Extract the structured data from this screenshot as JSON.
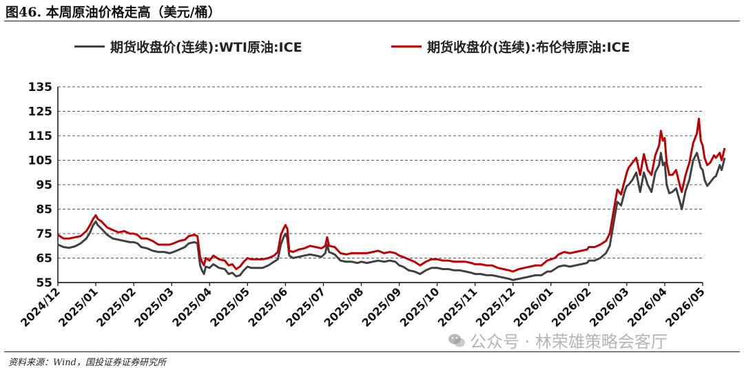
{
  "header": {
    "title": "图46. 本周原油价格走高（美元/桶）"
  },
  "footer": {
    "source": "资料来源：Wind，国投证券证券研究所"
  },
  "watermark": {
    "text": "公众号 · 林荣雄策略会客厅",
    "icon": "wechat-icon"
  },
  "chart_data": {
    "type": "line",
    "title": "本周原油价格走高（美元/桶）",
    "xlabel": "",
    "ylabel": "",
    "ylim": [
      55,
      135
    ],
    "yticks": [
      55,
      65,
      75,
      85,
      95,
      105,
      115,
      125,
      135
    ],
    "grid": "horizontal-dashed",
    "legend_placement": "top",
    "categories": [
      "2024/12",
      "2025/01",
      "2025/02",
      "2025/03",
      "2025/04",
      "2025/05",
      "2025/06",
      "2025/07",
      "2025/08",
      "2025/09",
      "2025/10",
      "2025/11",
      "2025/12",
      "2026/01",
      "2026/02",
      "2026/03",
      "2026/04",
      "2026/05"
    ],
    "series": [
      {
        "name": "期货收盘价(连续):WTI原油:ICE",
        "color": "#404040",
        "points": [
          [
            0,
            70.5
          ],
          [
            0.15,
            69.5
          ],
          [
            0.3,
            69.2
          ],
          [
            0.45,
            69.8
          ],
          [
            0.6,
            71
          ],
          [
            0.75,
            73
          ],
          [
            0.85,
            75.5
          ],
          [
            0.93,
            78.5
          ],
          [
            1.0,
            80
          ],
          [
            1.05,
            78.5
          ],
          [
            1.15,
            77
          ],
          [
            1.3,
            74.5
          ],
          [
            1.45,
            73
          ],
          [
            1.6,
            72.5
          ],
          [
            1.75,
            72
          ],
          [
            1.9,
            71.5
          ],
          [
            2.0,
            71.5
          ],
          [
            2.1,
            71
          ],
          [
            2.2,
            69.5
          ],
          [
            2.35,
            69
          ],
          [
            2.5,
            68
          ],
          [
            2.65,
            67.5
          ],
          [
            2.8,
            67.5
          ],
          [
            2.95,
            67
          ],
          [
            3.05,
            67.5
          ],
          [
            3.2,
            68.5
          ],
          [
            3.35,
            69.5
          ],
          [
            3.45,
            71
          ],
          [
            3.6,
            71.5
          ],
          [
            3.68,
            71
          ],
          [
            3.75,
            62
          ],
          [
            3.8,
            60
          ],
          [
            3.85,
            58.5
          ],
          [
            3.9,
            61.5
          ],
          [
            4.0,
            61
          ],
          [
            4.1,
            62.5
          ],
          [
            4.25,
            61
          ],
          [
            4.4,
            60.5
          ],
          [
            4.5,
            58.5
          ],
          [
            4.6,
            59
          ],
          [
            4.7,
            57.5
          ],
          [
            4.8,
            58
          ],
          [
            4.9,
            60
          ],
          [
            5.0,
            61.5
          ],
          [
            5.1,
            61
          ],
          [
            5.25,
            61
          ],
          [
            5.4,
            61
          ],
          [
            5.55,
            62
          ],
          [
            5.7,
            63.5
          ],
          [
            5.8,
            64.5
          ],
          [
            5.88,
            70.5
          ],
          [
            5.95,
            73.5
          ],
          [
            6.0,
            75
          ],
          [
            6.05,
            73
          ],
          [
            6.1,
            66
          ],
          [
            6.2,
            65
          ],
          [
            6.35,
            65.5
          ],
          [
            6.5,
            66
          ],
          [
            6.65,
            66.5
          ],
          [
            6.8,
            66
          ],
          [
            6.95,
            65.5
          ],
          [
            7.05,
            67
          ],
          [
            7.1,
            70.5
          ],
          [
            7.15,
            67.5
          ],
          [
            7.3,
            66.5
          ],
          [
            7.45,
            64
          ],
          [
            7.6,
            63.5
          ],
          [
            7.75,
            63.5
          ],
          [
            7.9,
            63
          ],
          [
            8.0,
            63.5
          ],
          [
            8.15,
            63
          ],
          [
            8.3,
            63.5
          ],
          [
            8.45,
            64
          ],
          [
            8.6,
            63.5
          ],
          [
            8.75,
            64
          ],
          [
            8.9,
            63.5
          ],
          [
            9.0,
            62
          ],
          [
            9.1,
            61.5
          ],
          [
            9.25,
            60
          ],
          [
            9.4,
            59.5
          ],
          [
            9.55,
            58.5
          ],
          [
            9.7,
            60
          ],
          [
            9.85,
            61
          ],
          [
            10.0,
            61
          ],
          [
            10.15,
            60.5
          ],
          [
            10.3,
            60.5
          ],
          [
            10.45,
            60
          ],
          [
            10.6,
            60
          ],
          [
            10.75,
            59.5
          ],
          [
            10.9,
            59
          ],
          [
            11.0,
            58.5
          ],
          [
            11.15,
            58.5
          ],
          [
            11.3,
            58
          ],
          [
            11.45,
            58
          ],
          [
            11.6,
            57.5
          ],
          [
            11.75,
            57
          ],
          [
            11.9,
            56.5
          ],
          [
            12.0,
            56
          ],
          [
            12.15,
            56.5
          ],
          [
            12.3,
            57
          ],
          [
            12.45,
            57.5
          ],
          [
            12.6,
            58
          ],
          [
            12.75,
            58
          ],
          [
            12.9,
            59.5
          ],
          [
            13.0,
            59.5
          ],
          [
            13.1,
            60.5
          ],
          [
            13.2,
            61.5
          ],
          [
            13.35,
            62
          ],
          [
            13.5,
            61.5
          ],
          [
            13.65,
            62
          ],
          [
            13.8,
            62.5
          ],
          [
            13.95,
            63
          ],
          [
            14.0,
            64
          ],
          [
            14.15,
            64
          ],
          [
            14.3,
            65
          ],
          [
            14.45,
            67
          ],
          [
            14.55,
            70
          ],
          [
            14.65,
            79
          ],
          [
            14.75,
            88
          ],
          [
            14.85,
            86.5
          ],
          [
            14.95,
            92.5
          ],
          [
            15.0,
            94.5
          ],
          [
            15.05,
            95
          ],
          [
            15.15,
            97
          ],
          [
            15.25,
            100
          ],
          [
            15.35,
            92
          ],
          [
            15.45,
            100
          ],
          [
            15.55,
            95
          ],
          [
            15.65,
            92
          ],
          [
            15.75,
            100
          ],
          [
            15.85,
            103
          ],
          [
            15.9,
            108
          ],
          [
            15.95,
            103
          ],
          [
            16.0,
            104
          ],
          [
            16.05,
            95
          ],
          [
            16.12,
            91.5
          ],
          [
            16.2,
            92
          ],
          [
            16.3,
            93.5
          ],
          [
            16.4,
            88
          ],
          [
            16.45,
            85
          ],
          [
            16.55,
            92.5
          ],
          [
            16.65,
            97
          ],
          [
            16.75,
            105
          ],
          [
            16.85,
            108
          ],
          [
            16.95,
            102
          ],
          [
            17.0,
            101
          ],
          [
            17.05,
            97
          ],
          [
            17.12,
            94.5
          ],
          [
            17.2,
            96
          ],
          [
            17.3,
            98
          ],
          [
            17.35,
            98.5
          ],
          [
            17.45,
            103
          ],
          [
            17.5,
            101
          ],
          [
            17.55,
            104
          ],
          [
            17.58,
            106
          ]
        ]
      },
      {
        "name": "期货收盘价(连续):布伦特原油:ICE",
        "color": "#C00000",
        "points": [
          [
            0,
            74.5
          ],
          [
            0.15,
            73
          ],
          [
            0.3,
            73
          ],
          [
            0.45,
            73.5
          ],
          [
            0.6,
            74
          ],
          [
            0.75,
            76
          ],
          [
            0.85,
            78.5
          ],
          [
            0.93,
            81
          ],
          [
            1.0,
            82.5
          ],
          [
            1.05,
            81
          ],
          [
            1.15,
            80
          ],
          [
            1.3,
            77.5
          ],
          [
            1.45,
            76.5
          ],
          [
            1.6,
            75.5
          ],
          [
            1.75,
            76
          ],
          [
            1.9,
            75
          ],
          [
            2.0,
            75
          ],
          [
            2.1,
            74.5
          ],
          [
            2.2,
            73
          ],
          [
            2.35,
            73
          ],
          [
            2.5,
            72
          ],
          [
            2.65,
            70.5
          ],
          [
            2.8,
            70.5
          ],
          [
            2.95,
            70.5
          ],
          [
            3.05,
            71
          ],
          [
            3.2,
            72
          ],
          [
            3.35,
            72.5
          ],
          [
            3.45,
            74
          ],
          [
            3.6,
            74.5
          ],
          [
            3.68,
            74
          ],
          [
            3.75,
            65.5
          ],
          [
            3.8,
            63.5
          ],
          [
            3.85,
            62
          ],
          [
            3.9,
            65
          ],
          [
            4.0,
            64
          ],
          [
            4.1,
            66
          ],
          [
            4.25,
            64.5
          ],
          [
            4.4,
            64
          ],
          [
            4.5,
            62
          ],
          [
            4.6,
            62.5
          ],
          [
            4.7,
            60.5
          ],
          [
            4.8,
            61.5
          ],
          [
            4.9,
            63.5
          ],
          [
            5.0,
            65
          ],
          [
            5.1,
            64.5
          ],
          [
            5.25,
            64.5
          ],
          [
            5.4,
            64.5
          ],
          [
            5.55,
            65
          ],
          [
            5.7,
            66
          ],
          [
            5.8,
            67.5
          ],
          [
            5.88,
            74.5
          ],
          [
            5.95,
            77
          ],
          [
            6.0,
            78.5
          ],
          [
            6.05,
            77
          ],
          [
            6.1,
            68
          ],
          [
            6.2,
            67.5
          ],
          [
            6.35,
            68.5
          ],
          [
            6.5,
            69
          ],
          [
            6.65,
            70
          ],
          [
            6.8,
            69.5
          ],
          [
            6.95,
            69
          ],
          [
            7.05,
            70
          ],
          [
            7.1,
            73.5
          ],
          [
            7.15,
            70
          ],
          [
            7.3,
            69.5
          ],
          [
            7.45,
            67
          ],
          [
            7.6,
            66.5
          ],
          [
            7.75,
            67
          ],
          [
            7.9,
            67
          ],
          [
            8.0,
            67
          ],
          [
            8.15,
            67
          ],
          [
            8.3,
            67.5
          ],
          [
            8.45,
            68
          ],
          [
            8.6,
            67
          ],
          [
            8.75,
            67.5
          ],
          [
            8.9,
            67
          ],
          [
            9.0,
            66
          ],
          [
            9.1,
            65.5
          ],
          [
            9.25,
            64.5
          ],
          [
            9.4,
            63.5
          ],
          [
            9.55,
            62
          ],
          [
            9.7,
            63.5
          ],
          [
            9.85,
            64.5
          ],
          [
            10.0,
            64.5
          ],
          [
            10.15,
            64
          ],
          [
            10.3,
            64
          ],
          [
            10.45,
            63.5
          ],
          [
            10.6,
            63.5
          ],
          [
            10.75,
            63.5
          ],
          [
            10.9,
            63
          ],
          [
            11.0,
            62.5
          ],
          [
            11.15,
            62.5
          ],
          [
            11.3,
            62
          ],
          [
            11.45,
            62
          ],
          [
            11.6,
            61
          ],
          [
            11.75,
            60.5
          ],
          [
            11.9,
            60
          ],
          [
            12.0,
            59.5
          ],
          [
            12.15,
            60.5
          ],
          [
            12.3,
            61
          ],
          [
            12.45,
            61.5
          ],
          [
            12.6,
            62
          ],
          [
            12.75,
            62
          ],
          [
            12.9,
            64
          ],
          [
            13.0,
            64.5
          ],
          [
            13.1,
            65
          ],
          [
            13.2,
            66.5
          ],
          [
            13.35,
            67.5
          ],
          [
            13.5,
            67
          ],
          [
            13.65,
            67.5
          ],
          [
            13.8,
            68
          ],
          [
            13.95,
            68.5
          ],
          [
            14.0,
            69.5
          ],
          [
            14.15,
            69.5
          ],
          [
            14.3,
            70.5
          ],
          [
            14.45,
            72
          ],
          [
            14.55,
            75
          ],
          [
            14.65,
            84
          ],
          [
            14.75,
            93
          ],
          [
            14.85,
            91
          ],
          [
            14.95,
            97
          ],
          [
            15.0,
            100
          ],
          [
            15.05,
            102
          ],
          [
            15.15,
            104
          ],
          [
            15.25,
            106
          ],
          [
            15.35,
            99
          ],
          [
            15.45,
            107.5
          ],
          [
            15.55,
            101
          ],
          [
            15.65,
            99
          ],
          [
            15.75,
            107
          ],
          [
            15.85,
            111
          ],
          [
            15.9,
            117
          ],
          [
            15.95,
            113
          ],
          [
            16.0,
            114
          ],
          [
            16.05,
            104
          ],
          [
            16.12,
            99
          ],
          [
            16.2,
            99
          ],
          [
            16.3,
            101
          ],
          [
            16.4,
            94.5
          ],
          [
            16.45,
            92
          ],
          [
            16.55,
            99
          ],
          [
            16.65,
            104
          ],
          [
            16.75,
            112
          ],
          [
            16.85,
            116
          ],
          [
            16.9,
            122
          ],
          [
            16.95,
            113
          ],
          [
            17.0,
            111
          ],
          [
            17.05,
            106
          ],
          [
            17.12,
            103
          ],
          [
            17.2,
            104
          ],
          [
            17.3,
            107
          ],
          [
            17.35,
            106
          ],
          [
            17.45,
            108
          ],
          [
            17.5,
            105
          ],
          [
            17.55,
            108
          ],
          [
            17.58,
            110
          ]
        ]
      }
    ]
  }
}
